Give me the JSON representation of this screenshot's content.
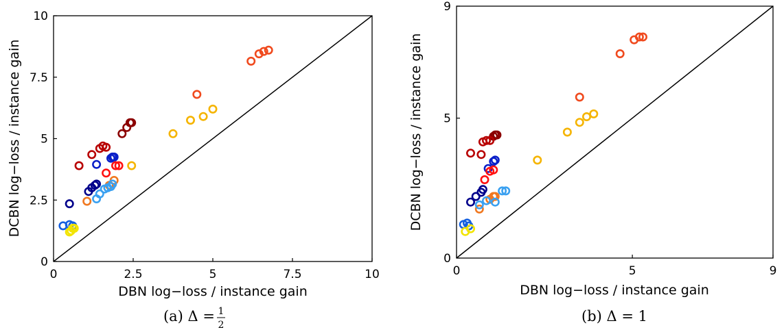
{
  "chart_data": [
    {
      "type": "scatter",
      "caption": "(a) Δ =",
      "caption_fraction": {
        "num": "1",
        "den": "2"
      },
      "xlabel": "DBN log−loss / instance gain",
      "ylabel": "DCBN log−loss / instance gain",
      "xlim": [
        0,
        10
      ],
      "ylim": [
        0,
        10
      ],
      "xticks": [
        "0",
        "2.5",
        "5",
        "7.5",
        "10"
      ],
      "yticks": [
        "0",
        "2.5",
        "5",
        "7.5",
        "10"
      ],
      "xtick_values": [
        0,
        2.5,
        5,
        7.5,
        10
      ],
      "ytick_values": [
        0,
        2.5,
        5,
        7.5,
        10
      ],
      "diagonal": true,
      "grid": false,
      "points": [
        {
          "x": 6.2,
          "y": 8.15,
          "color": "#f04a1e"
        },
        {
          "x": 6.45,
          "y": 8.45,
          "color": "#f04a1e"
        },
        {
          "x": 6.6,
          "y": 8.55,
          "color": "#f04a1e"
        },
        {
          "x": 6.75,
          "y": 8.6,
          "color": "#f04a1e"
        },
        {
          "x": 4.5,
          "y": 6.8,
          "color": "#f04a1e"
        },
        {
          "x": 3.75,
          "y": 5.2,
          "color": "#f5b400"
        },
        {
          "x": 4.3,
          "y": 5.75,
          "color": "#f5b400"
        },
        {
          "x": 4.7,
          "y": 5.9,
          "color": "#f5b400"
        },
        {
          "x": 5.0,
          "y": 6.2,
          "color": "#f5b400"
        },
        {
          "x": 2.45,
          "y": 3.9,
          "color": "#f5b400"
        },
        {
          "x": 2.3,
          "y": 5.45,
          "color": "#8b0000"
        },
        {
          "x": 2.4,
          "y": 5.65,
          "color": "#8b0000"
        },
        {
          "x": 2.45,
          "y": 5.65,
          "color": "#8b0000"
        },
        {
          "x": 2.15,
          "y": 5.2,
          "color": "#8b0000"
        },
        {
          "x": 1.55,
          "y": 4.7,
          "color": "#b80000"
        },
        {
          "x": 1.65,
          "y": 4.65,
          "color": "#b80000"
        },
        {
          "x": 1.45,
          "y": 4.6,
          "color": "#b80000"
        },
        {
          "x": 1.2,
          "y": 4.35,
          "color": "#b80000"
        },
        {
          "x": 0.8,
          "y": 3.9,
          "color": "#b80000"
        },
        {
          "x": 1.8,
          "y": 4.2,
          "color": "#0a1fc8"
        },
        {
          "x": 1.85,
          "y": 4.25,
          "color": "#0a1fc8"
        },
        {
          "x": 1.9,
          "y": 4.25,
          "color": "#0a1fc8"
        },
        {
          "x": 1.35,
          "y": 3.95,
          "color": "#0a1fc8"
        },
        {
          "x": 1.95,
          "y": 3.9,
          "color": "#ff1010"
        },
        {
          "x": 2.05,
          "y": 3.9,
          "color": "#ff1010"
        },
        {
          "x": 1.65,
          "y": 3.6,
          "color": "#ff1010"
        },
        {
          "x": 1.1,
          "y": 2.85,
          "color": "#00008b"
        },
        {
          "x": 1.2,
          "y": 3.0,
          "color": "#00008b"
        },
        {
          "x": 1.3,
          "y": 3.1,
          "color": "#00008b"
        },
        {
          "x": 1.35,
          "y": 3.15,
          "color": "#00008b"
        },
        {
          "x": 0.5,
          "y": 2.35,
          "color": "#00008b"
        },
        {
          "x": 1.9,
          "y": 3.3,
          "color": "#f07820"
        },
        {
          "x": 1.75,
          "y": 3.1,
          "color": "#f07820"
        },
        {
          "x": 1.05,
          "y": 2.45,
          "color": "#f07820"
        },
        {
          "x": 1.7,
          "y": 3.0,
          "color": "#3aa0f0"
        },
        {
          "x": 1.8,
          "y": 3.05,
          "color": "#3aa0f0"
        },
        {
          "x": 1.85,
          "y": 3.15,
          "color": "#3aa0f0"
        },
        {
          "x": 1.6,
          "y": 2.95,
          "color": "#3aa0f0"
        },
        {
          "x": 1.45,
          "y": 2.75,
          "color": "#3aa0f0"
        },
        {
          "x": 1.35,
          "y": 2.55,
          "color": "#3aa0f0"
        },
        {
          "x": 0.3,
          "y": 1.45,
          "color": "#1560e0"
        },
        {
          "x": 0.5,
          "y": 1.5,
          "color": "#1560e0"
        },
        {
          "x": 0.6,
          "y": 1.45,
          "color": "#1560e0"
        },
        {
          "x": 0.5,
          "y": 1.2,
          "color": "#f2e400"
        },
        {
          "x": 0.55,
          "y": 1.25,
          "color": "#f2e400"
        },
        {
          "x": 0.6,
          "y": 1.35,
          "color": "#f2e400"
        },
        {
          "x": 0.65,
          "y": 1.35,
          "color": "#f2e400"
        }
      ]
    },
    {
      "type": "scatter",
      "caption": "(b) Δ = 1",
      "xlabel": "DBN log−loss / instance gain",
      "ylabel": "DCBN log−loss / instance gain",
      "xlim": [
        0,
        9
      ],
      "ylim": [
        0,
        9
      ],
      "xticks": [
        "0",
        "5",
        "9"
      ],
      "yticks": [
        "0",
        "5",
        "9"
      ],
      "xtick_values": [
        0,
        5,
        9
      ],
      "ytick_values": [
        0,
        5,
        9
      ],
      "diagonal": true,
      "grid": false,
      "points": [
        {
          "x": 4.65,
          "y": 7.3,
          "color": "#f04a1e"
        },
        {
          "x": 5.05,
          "y": 7.8,
          "color": "#f04a1e"
        },
        {
          "x": 5.2,
          "y": 7.9,
          "color": "#f04a1e"
        },
        {
          "x": 5.3,
          "y": 7.9,
          "color": "#f04a1e"
        },
        {
          "x": 3.5,
          "y": 5.75,
          "color": "#f04a1e"
        },
        {
          "x": 3.15,
          "y": 4.5,
          "color": "#f5b400"
        },
        {
          "x": 3.5,
          "y": 4.85,
          "color": "#f5b400"
        },
        {
          "x": 3.7,
          "y": 5.05,
          "color": "#f5b400"
        },
        {
          "x": 3.9,
          "y": 5.15,
          "color": "#f5b400"
        },
        {
          "x": 2.3,
          "y": 3.5,
          "color": "#f5b400"
        },
        {
          "x": 1.05,
          "y": 4.35,
          "color": "#8b0000"
        },
        {
          "x": 1.1,
          "y": 4.4,
          "color": "#8b0000"
        },
        {
          "x": 1.15,
          "y": 4.4,
          "color": "#8b0000"
        },
        {
          "x": 0.75,
          "y": 4.15,
          "color": "#b80000"
        },
        {
          "x": 0.85,
          "y": 4.2,
          "color": "#b80000"
        },
        {
          "x": 0.95,
          "y": 4.2,
          "color": "#b80000"
        },
        {
          "x": 0.7,
          "y": 3.7,
          "color": "#b80000"
        },
        {
          "x": 0.4,
          "y": 3.75,
          "color": "#b80000"
        },
        {
          "x": 1.05,
          "y": 3.45,
          "color": "#0a1fc8"
        },
        {
          "x": 1.1,
          "y": 3.5,
          "color": "#0a1fc8"
        },
        {
          "x": 0.9,
          "y": 3.2,
          "color": "#0a1fc8"
        },
        {
          "x": 0.95,
          "y": 3.1,
          "color": "#ff1010"
        },
        {
          "x": 1.05,
          "y": 3.15,
          "color": "#ff1010"
        },
        {
          "x": 0.8,
          "y": 2.8,
          "color": "#ff1010"
        },
        {
          "x": 0.55,
          "y": 2.2,
          "color": "#00008b"
        },
        {
          "x": 0.7,
          "y": 2.35,
          "color": "#00008b"
        },
        {
          "x": 0.75,
          "y": 2.45,
          "color": "#00008b"
        },
        {
          "x": 0.4,
          "y": 2.0,
          "color": "#00008b"
        },
        {
          "x": 0.95,
          "y": 2.1,
          "color": "#f07820"
        },
        {
          "x": 1.05,
          "y": 2.2,
          "color": "#f07820"
        },
        {
          "x": 1.1,
          "y": 2.2,
          "color": "#f07820"
        },
        {
          "x": 0.65,
          "y": 1.75,
          "color": "#f07820"
        },
        {
          "x": 1.3,
          "y": 2.4,
          "color": "#3aa0f0"
        },
        {
          "x": 1.4,
          "y": 2.4,
          "color": "#3aa0f0"
        },
        {
          "x": 0.85,
          "y": 2.05,
          "color": "#3aa0f0"
        },
        {
          "x": 1.1,
          "y": 2.0,
          "color": "#3aa0f0"
        },
        {
          "x": 0.65,
          "y": 1.9,
          "color": "#3aa0f0"
        },
        {
          "x": 0.2,
          "y": 1.2,
          "color": "#1560e0"
        },
        {
          "x": 0.3,
          "y": 1.25,
          "color": "#1560e0"
        },
        {
          "x": 0.35,
          "y": 1.15,
          "color": "#1560e0"
        },
        {
          "x": 0.25,
          "y": 0.95,
          "color": "#f2e400"
        },
        {
          "x": 0.4,
          "y": 1.05,
          "color": "#f2e400"
        }
      ]
    }
  ]
}
